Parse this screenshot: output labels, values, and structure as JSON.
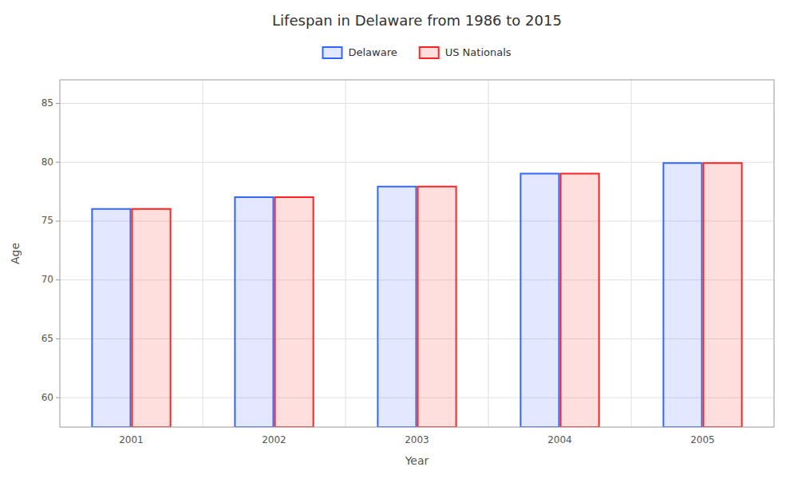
{
  "chart_data": {
    "type": "bar",
    "title": "Lifespan in Delaware from 1986 to 2015",
    "x_label": "Year",
    "y_label": "Age",
    "categories": [
      "2001",
      "2002",
      "2003",
      "2004",
      "2005"
    ],
    "series": [
      {
        "name": "Delaware",
        "color": "#3366ff",
        "values": [
          76.1,
          77.1,
          78.0,
          79.1,
          80.0
        ]
      },
      {
        "name": "US Nationals",
        "color": "#ff2222",
        "values": [
          76.1,
          77.1,
          78.0,
          79.1,
          80.0
        ]
      }
    ],
    "ylim": [
      57.5,
      87
    ],
    "yticks": [
      60,
      65,
      70,
      75,
      80,
      85
    ],
    "grid": true,
    "legend": "top"
  }
}
